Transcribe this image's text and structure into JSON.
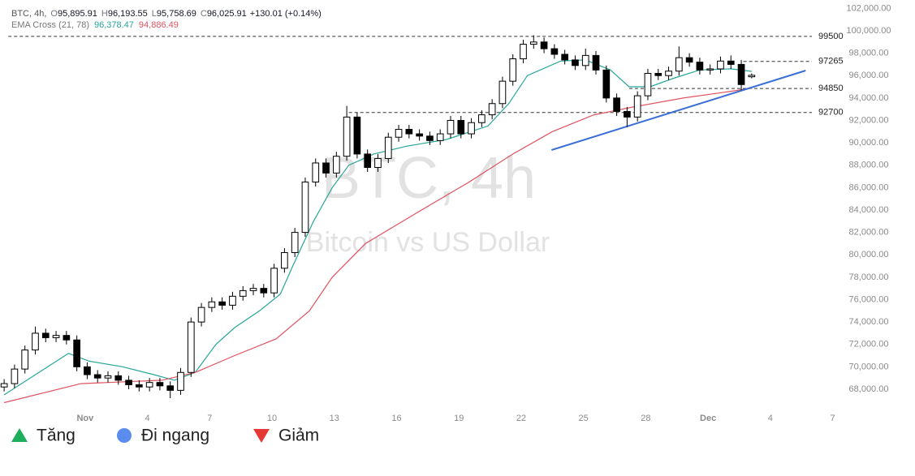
{
  "chart_data": {
    "type": "candlestick",
    "header": {
      "title": "BTC, 4h,",
      "ohlc": [
        {
          "key": "O",
          "value": "95,895.91"
        },
        {
          "key": "H",
          "value": "96,193.55"
        },
        {
          "key": "L",
          "value": "95,758.69"
        },
        {
          "key": "C",
          "value": "96,025.91"
        }
      ],
      "change": "+130.01 (+0.14%)"
    },
    "watermark": {
      "title": "BTC, 4h",
      "subtitle": "Bitcoin vs US Dollar"
    },
    "up_color": "#ffffff",
    "down_color": "#000000",
    "x": [
      -2.9,
      -2.4,
      -1.9,
      -1.4,
      -0.9,
      -0.4,
      0.1,
      0.6,
      1.1,
      1.6,
      2.1,
      2.6,
      3.1,
      3.6,
      4.1,
      4.6,
      5.1,
      5.6,
      6.1,
      6.6,
      7.1,
      7.6,
      8.1,
      8.6,
      9.1,
      9.6,
      10.1,
      10.6,
      11.1,
      11.6,
      12.1,
      12.6,
      13.1,
      13.6,
      14.1,
      14.6,
      15.1,
      15.6,
      16.1,
      16.6,
      17.1,
      17.6,
      18.1,
      18.6,
      19.1,
      19.6,
      20.1,
      20.6,
      21.1,
      21.6,
      22.1,
      22.6,
      23.1,
      23.6,
      24.1,
      24.6,
      25.1,
      25.6,
      26.1,
      26.6,
      27.1,
      27.6,
      28.1,
      28.6,
      29.1,
      29.6,
      30.1,
      30.6,
      31.1,
      31.6,
      32.1,
      32.6,
      33.1
    ],
    "open": [
      68200,
      68500,
      69800,
      71500,
      73000,
      72600,
      72800,
      72400,
      70000,
      69300,
      69000,
      69200,
      68800,
      68400,
      68200,
      68600,
      68300,
      67900,
      69500,
      74000,
      75300,
      75800,
      75500,
      76300,
      76800,
      77000,
      76600,
      78800,
      80200,
      82000,
      86500,
      88200,
      87300,
      88800,
      92300,
      89000,
      87800,
      88600,
      90500,
      91200,
      90800,
      90600,
      90200,
      90800,
      92000,
      90800,
      91800,
      92500,
      93500,
      95500,
      97500,
      98800,
      99000,
      98400,
      97900,
      97400,
      96900,
      97800,
      96500,
      94000,
      92800,
      92300,
      94200,
      96200,
      96000,
      96400,
      97600,
      97200,
      96500,
      96600,
      97300,
      97000,
      95895.91
    ],
    "high": [
      68900,
      70200,
      71900,
      73600,
      73400,
      73200,
      73200,
      72800,
      70400,
      69700,
      69600,
      69600,
      69200,
      68800,
      69000,
      69000,
      68700,
      69900,
      74400,
      75700,
      76200,
      76200,
      76700,
      77200,
      77400,
      77400,
      79200,
      80600,
      82400,
      86900,
      88600,
      88600,
      89200,
      93300,
      92700,
      89400,
      89000,
      90900,
      91600,
      91600,
      91200,
      91000,
      91200,
      92400,
      92400,
      92200,
      92900,
      93900,
      95900,
      97900,
      99200,
      99600,
      99400,
      98800,
      98300,
      97800,
      98400,
      98200,
      96900,
      94400,
      93200,
      94600,
      96600,
      96600,
      96800,
      98600,
      98000,
      97600,
      97000,
      97700,
      97800,
      97400,
      96193.55
    ],
    "low": [
      67800,
      68100,
      69400,
      71100,
      72200,
      72200,
      72000,
      69600,
      68900,
      68600,
      68600,
      68400,
      68000,
      67800,
      67800,
      67900,
      67200,
      67500,
      69100,
      73600,
      74900,
      75100,
      75100,
      75900,
      76400,
      76200,
      76200,
      78400,
      79800,
      81600,
      86100,
      86900,
      86900,
      88400,
      88600,
      87400,
      87400,
      88200,
      90100,
      90400,
      90200,
      89800,
      89800,
      90400,
      90400,
      90400,
      91400,
      92100,
      93100,
      95100,
      97100,
      98400,
      98000,
      97500,
      97000,
      96500,
      96500,
      96100,
      93600,
      92400,
      91400,
      91900,
      93800,
      95600,
      95600,
      96000,
      96800,
      96100,
      96100,
      96200,
      96600,
      94700,
      95758.69
    ],
    "close": [
      68500,
      69800,
      71500,
      73000,
      72600,
      72800,
      72400,
      70000,
      69300,
      69000,
      69200,
      68800,
      68400,
      68200,
      68600,
      68300,
      67900,
      69500,
      74000,
      75300,
      75800,
      75500,
      76300,
      76800,
      77000,
      76600,
      78800,
      80200,
      82000,
      86500,
      88200,
      87300,
      88800,
      92300,
      89000,
      87800,
      88600,
      90500,
      91200,
      90800,
      90600,
      90200,
      90800,
      92000,
      90800,
      91800,
      92500,
      93500,
      95500,
      97500,
      98800,
      99000,
      98400,
      97900,
      97400,
      96900,
      97800,
      96500,
      94000,
      92800,
      92300,
      94200,
      96200,
      96000,
      96400,
      97600,
      97200,
      96500,
      96600,
      97300,
      97000,
      95200,
      96025.91
    ],
    "indicator": {
      "name": "EMA Cross (21, 78)",
      "series": [
        {
          "label": "96,378.47",
          "color": "#26a69a",
          "x": [
            -2.9,
            0.2,
            1.2,
            2.8,
            4.3,
            5.3,
            6.3,
            7.3,
            8.2,
            9.4,
            10.4,
            11,
            12,
            12.9,
            13.7,
            14.9,
            16.5,
            18.4,
            20.4,
            21.4,
            22.3,
            23.9,
            25.1,
            26.3,
            27.2,
            28.2,
            29.4,
            30.6,
            32.1,
            33.1
          ],
          "values": [
            67500,
            71200,
            70500,
            70000,
            69300,
            68800,
            69500,
            72000,
            73500,
            75000,
            76500,
            79000,
            83000,
            86000,
            88000,
            89000,
            89700,
            90300,
            91500,
            93500,
            96000,
            97300,
            97400,
            96500,
            95000,
            95000,
            95800,
            96500,
            96600,
            96378.47
          ]
        },
        {
          "label": "94,886.49",
          "color": "#e05260",
          "x": [
            -2.9,
            0.8,
            4.7,
            6.3,
            8.2,
            10.2,
            11.8,
            12.9,
            14.5,
            17.2,
            19.5,
            21.6,
            23.5,
            25.5,
            27.4,
            29.8,
            32.1,
            33.1
          ],
          "values": [
            66800,
            68500,
            68800,
            69500,
            71000,
            72500,
            75000,
            78000,
            81000,
            84000,
            86500,
            89000,
            91000,
            92500,
            93200,
            94000,
            94600,
            94886.49
          ]
        }
      ]
    },
    "levels": [
      {
        "value": 99500,
        "start": -2.7
      },
      {
        "value": 97265,
        "start": 32.7
      },
      {
        "value": 94850,
        "start": 27.2
      },
      {
        "value": 92700,
        "start": 13.7
      }
    ],
    "trendline": {
      "color": "#3a6fd8",
      "x": [
        23.46,
        35.7
      ],
      "y": [
        89356,
        96452
      ]
    },
    "xlim": [
      -3.1,
      36
    ],
    "ylim": [
      66550,
      102750
    ],
    "xticks": [
      {
        "value": 1,
        "label": "Nov"
      },
      4,
      7,
      10,
      13,
      16,
      19,
      22,
      25,
      28,
      {
        "value": 31,
        "label": "Dec"
      },
      {
        "value": 34,
        "label": "4"
      },
      {
        "value": 37,
        "label": "7"
      }
    ],
    "yticks": [
      {
        "value": 68000,
        "label": "68,000.00"
      },
      {
        "value": 70000,
        "label": "70,000.00"
      },
      {
        "value": 72000,
        "label": "72,000.00"
      },
      {
        "value": 74000,
        "label": "74,000.00"
      },
      {
        "value": 76000,
        "label": "76,000.00"
      },
      {
        "value": 78000,
        "label": "78,000.00"
      },
      {
        "value": 80000,
        "label": "80,000.00"
      },
      {
        "value": 82000,
        "label": "82,000.00"
      },
      {
        "value": 84000,
        "label": "84,000.00"
      },
      {
        "value": 86000,
        "label": "86,000.00"
      },
      {
        "value": 88000,
        "label": "88,000.00"
      },
      {
        "value": 90000,
        "label": "90,000.00"
      },
      {
        "value": 92000,
        "label": "92,000.00"
      },
      {
        "value": 94000,
        "label": "94,000.00"
      },
      {
        "value": 96000,
        "label": "96,000.00"
      },
      {
        "value": 98000,
        "label": "98,000.00"
      },
      {
        "value": 100000,
        "label": "100,000.00"
      },
      {
        "value": 102000,
        "label": "102,000.00"
      }
    ],
    "sentiment_legend": [
      {
        "label": "Tăng",
        "color": "#1fae5b",
        "shape": "triangle-up"
      },
      {
        "label": "Đi ngang",
        "color": "#5b8def",
        "shape": "circle"
      },
      {
        "label": "Giảm",
        "color": "#e53935",
        "shape": "triangle-down"
      }
    ]
  }
}
